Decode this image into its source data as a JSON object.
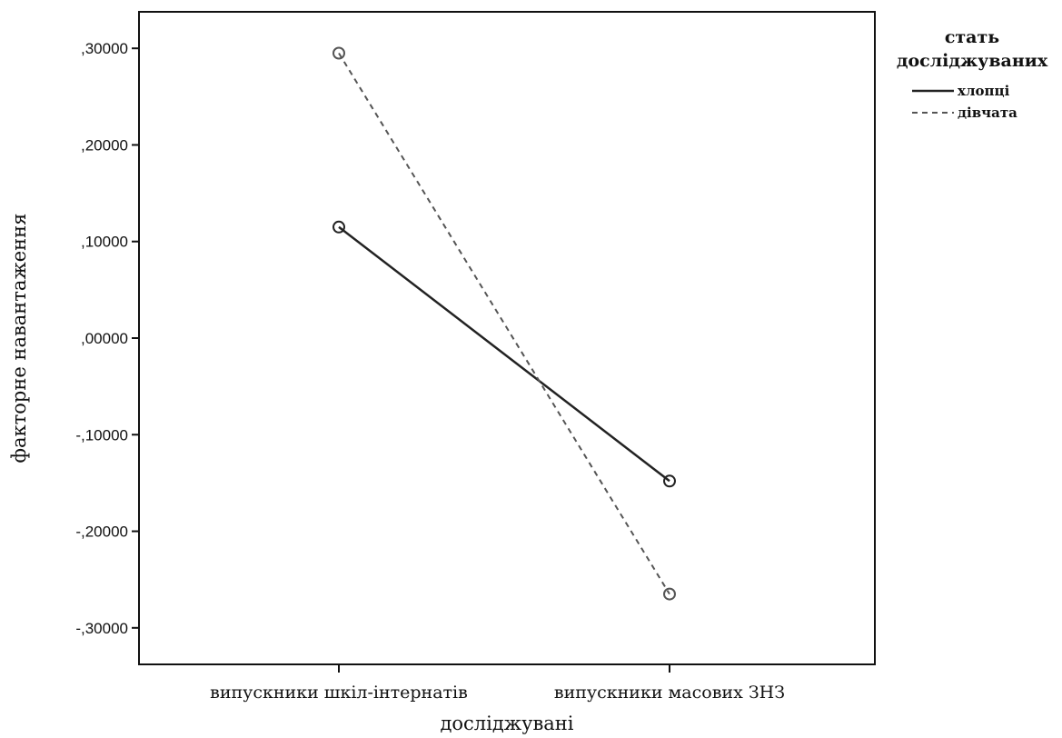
{
  "chart_data": {
    "type": "line",
    "categories": [
      "випускники шкіл-інтернатів",
      "випускники масових ЗНЗ"
    ],
    "series": [
      {
        "name": "хлопці",
        "values": [
          0.115,
          -0.148
        ],
        "line_style": "solid",
        "color": "#222222"
      },
      {
        "name": "дівчата",
        "values": [
          0.295,
          -0.265
        ],
        "line_style": "dashed",
        "color": "#555555"
      }
    ],
    "xlabel": "досліджувані",
    "ylabel": "факторне навантаження",
    "ylim": [
      -0.335,
      0.335
    ],
    "yticks": [
      0.3,
      0.2,
      0.1,
      0.0,
      -0.1,
      -0.2,
      -0.3
    ],
    "ytick_labels": [
      ",30000",
      ",20000",
      ",10000",
      ",00000",
      "-,10000",
      "-,20000",
      "-,30000"
    ],
    "legend": {
      "title_lines": [
        "стать",
        "досліджуваних"
      ],
      "placement": "right-top"
    },
    "grid": false,
    "marker": "circle"
  }
}
